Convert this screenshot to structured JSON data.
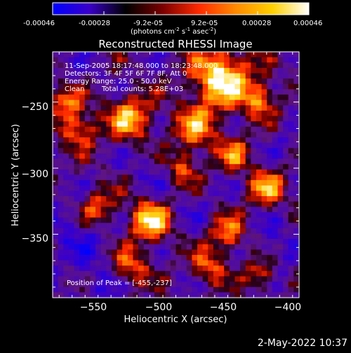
{
  "colorbar": {
    "ticks": [
      "-0.00046",
      "-0.00028",
      "-9.2e-05",
      "9.2e-05",
      "0.00028",
      "0.00046"
    ],
    "unit_main": "(photons cm",
    "unit_sup1": "-2",
    "unit_s": " s",
    "unit_sup2": "-1",
    "unit_asec": " asec",
    "unit_sup3": "-2",
    "unit_close": ")",
    "colors": [
      "#0000ff",
      "#3a00c8",
      "#000000",
      "#7a0000",
      "#ff2a00",
      "#ff8a00",
      "#ffd000",
      "#ffffff"
    ]
  },
  "header": {
    "title": "Reconstructed RHESSI Image",
    "line1": "11-Sep-2005 18:17:48.000 to 18:23:48.000",
    "line2": "Detectors: 3F 4F 5F 6F 7F 8F, Att 0",
    "line3": "Energy Range: 25.0 - 50.0 keV",
    "line4_a": "Clean",
    "line4_b": "Total counts: 5.28E+03",
    "peak": "Position of Peak = [-455,-237]"
  },
  "footer": {
    "timestamp": "2-May-2022 10:37"
  },
  "chart_data": {
    "type": "heatmap",
    "title": "Reconstructed RHESSI Image",
    "xlabel": "Heliocentric X (arcsec)",
    "ylabel": "Heliocentric Y (arcsec)",
    "xlim": [
      -580,
      -390
    ],
    "ylim": [
      -398,
      -212
    ],
    "x_ticks": [
      -550,
      -500,
      -450,
      -400
    ],
    "x_tick_labels": [
      "−550",
      "−500",
      "−450",
      "−400"
    ],
    "y_ticks": [
      -250,
      -300,
      -350
    ],
    "y_tick_labels": [
      "−250",
      "−300",
      "−350"
    ],
    "colorbar_range": [
      -0.00046,
      0.00046
    ],
    "peak_position": [
      -455,
      -237
    ],
    "bright_sources": [
      {
        "x": -450,
        "y": -232,
        "level": 1.0,
        "r": 16
      },
      {
        "x": -505,
        "y": -340,
        "level": 0.85,
        "r": 11
      },
      {
        "x": -520,
        "y": -262,
        "level": 0.7,
        "r": 12
      },
      {
        "x": -560,
        "y": -270,
        "level": 0.55,
        "r": 10
      },
      {
        "x": -470,
        "y": -270,
        "level": 0.55,
        "r": 12
      },
      {
        "x": -415,
        "y": -315,
        "level": 0.6,
        "r": 10
      },
      {
        "x": -420,
        "y": -248,
        "level": 0.55,
        "r": 9
      },
      {
        "x": -445,
        "y": -350,
        "level": 0.5,
        "r": 10
      },
      {
        "x": -545,
        "y": -330,
        "level": 0.5,
        "r": 10
      },
      {
        "x": -570,
        "y": -250,
        "level": 0.5,
        "r": 8
      },
      {
        "x": -480,
        "y": -300,
        "level": 0.45,
        "r": 9
      },
      {
        "x": -520,
        "y": -375,
        "level": 0.45,
        "r": 10
      },
      {
        "x": -460,
        "y": -375,
        "level": 0.45,
        "r": 9
      },
      {
        "x": -420,
        "y": -380,
        "level": 0.5,
        "r": 8
      },
      {
        "x": -440,
        "y": -290,
        "level": 0.45,
        "r": 9
      }
    ],
    "dark_regions": [
      {
        "x": -560,
        "y": -350,
        "level": -0.6,
        "r": 18
      },
      {
        "x": -410,
        "y": -360,
        "level": -0.55,
        "r": 14
      },
      {
        "x": -500,
        "y": -300,
        "level": -0.45,
        "r": 14
      },
      {
        "x": -545,
        "y": -390,
        "level": -0.55,
        "r": 12
      },
      {
        "x": -470,
        "y": -330,
        "level": -0.4,
        "r": 12
      },
      {
        "x": -560,
        "y": -225,
        "level": -0.35,
        "r": 10
      },
      {
        "x": -400,
        "y": -280,
        "level": -0.4,
        "r": 10
      }
    ]
  }
}
